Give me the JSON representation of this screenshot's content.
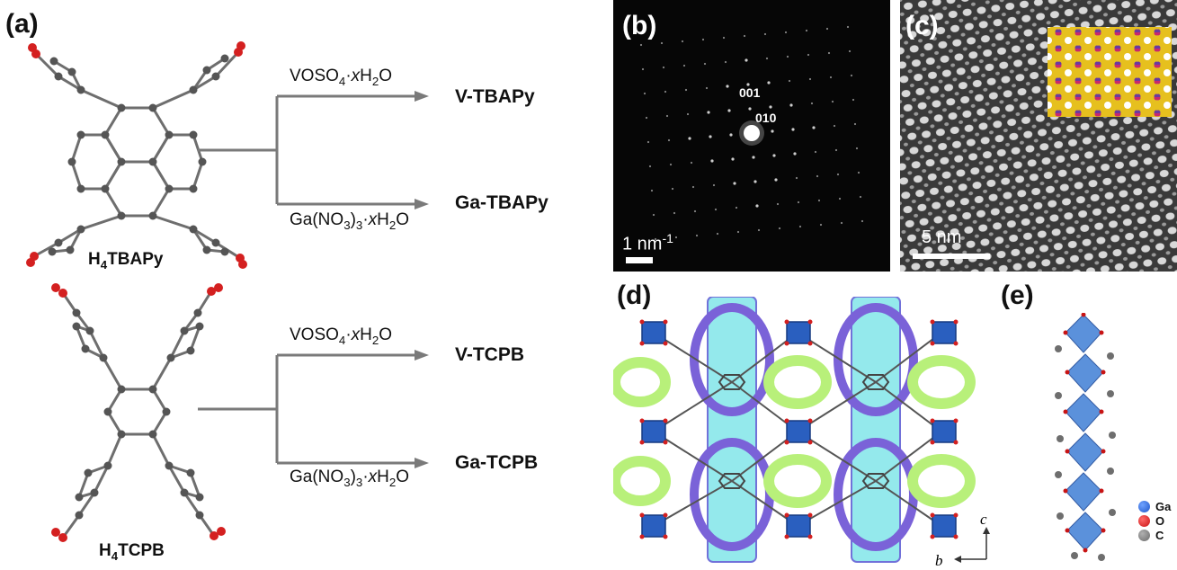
{
  "panels": {
    "a": {
      "label": "(a)"
    },
    "b": {
      "label": "(b)",
      "spots": [
        "001",
        "010"
      ],
      "scale": "1 nm",
      "scale_sup": "-1"
    },
    "c": {
      "label": "(c)",
      "scale": "5 nm"
    },
    "d": {
      "label": "(d)",
      "axis_c": "c",
      "axis_b": "b"
    },
    "e": {
      "label": "(e)"
    }
  },
  "molecules": {
    "tbapy": {
      "h": "H",
      "sub": "4",
      "rest": "TBAPy"
    },
    "tcpb": {
      "h": "H",
      "sub": "4",
      "rest": "TCPB"
    }
  },
  "reagents": {
    "vanadyl": {
      "pre": "VOSO",
      "s1": "4",
      "dot": "·",
      "x": "x",
      "h": "H",
      "s2": "2",
      "o": "O"
    },
    "gallium": {
      "pre": "Ga(NO",
      "s1": "3",
      "mid": ")",
      "s2": "3",
      "dot": "·",
      "x": "x",
      "h": "H",
      "s3": "2",
      "o": "O"
    }
  },
  "products": {
    "v_tbapy": "V-TBAPy",
    "ga_tbapy": "Ga-TBAPy",
    "v_tcpb": "V-TCPB",
    "ga_tcpb": "Ga-TCPB"
  },
  "legend": [
    {
      "label": "Ga",
      "color": "#1f55c8"
    },
    {
      "label": "O",
      "color": "#c81414"
    },
    {
      "label": "C",
      "color": "#6b6b6b"
    }
  ],
  "colors": {
    "carbon": "#6e6e6e",
    "oxygen": "#d42020",
    "arrow": "#7a7a7a",
    "octahedron": "#2a5fbf",
    "channel_cyan": "#8fe8ec",
    "channel_green": "#b8f07a",
    "channel_violet": "#7a62d8"
  }
}
